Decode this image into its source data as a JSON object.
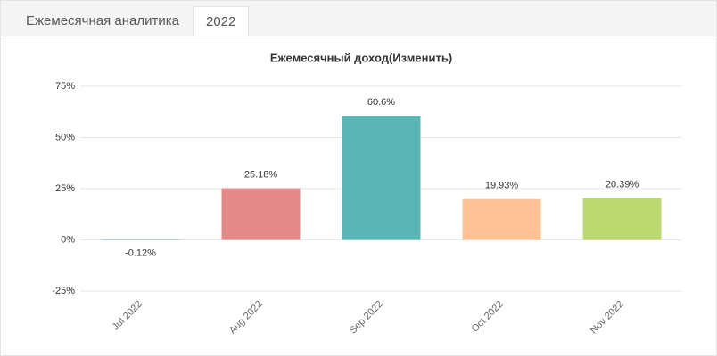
{
  "tabs": [
    "Ежемесячная аналитика",
    "2022"
  ],
  "chart_data": {
    "type": "bar",
    "title": "Ежемесячный доход(Изменить)",
    "categories": [
      "Jul 2022",
      "Aug 2022",
      "Sep 2022",
      "Oct 2022",
      "Nov 2022"
    ],
    "values": [
      -0.12,
      25.18,
      60.6,
      19.93,
      20.39
    ],
    "value_labels": [
      "-0.12%",
      "25.18%",
      "60.6%",
      "19.93%",
      "20.39%"
    ],
    "colors": [
      "#7cb5ec",
      "#e38a88",
      "#5bb5b4",
      "#ffc196",
      "#bdd870"
    ],
    "ylim": [
      -25,
      75
    ],
    "yticks": [
      {
        "value": -25,
        "label": "-25%"
      },
      {
        "value": 0,
        "label": "0%"
      },
      {
        "value": 25,
        "label": "25%"
      },
      {
        "value": 50,
        "label": "50%"
      },
      {
        "value": 75,
        "label": "75%"
      }
    ],
    "grid": true
  }
}
